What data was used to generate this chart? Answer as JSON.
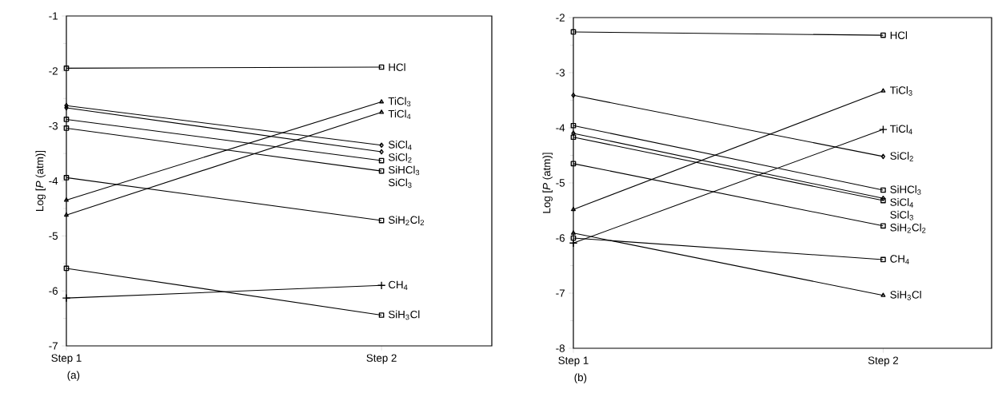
{
  "chart_data": [
    {
      "type": "line",
      "ylabel": "Log  [*P* (atm)]",
      "categories": [
        "Step 1",
        "Step 2"
      ],
      "ylim": [
        -7,
        -1
      ],
      "yticks": [
        -7,
        -6,
        -5,
        -4,
        -3,
        -2,
        -1
      ],
      "grid": false,
      "legend": false,
      "annotations": [
        "(a)"
      ],
      "series": [
        {
          "name": "HCl",
          "color": "#000000",
          "marker": "square",
          "values": [
            -1.95,
            -1.93
          ]
        },
        {
          "name": "TiCl$_{3}$",
          "color": "#000000",
          "marker": "triangle",
          "values": [
            -4.35,
            -2.56
          ]
        },
        {
          "name": "TiCl$_{4}$",
          "color": "#000000",
          "marker": "triangle",
          "values": [
            -4.62,
            -2.75
          ]
        },
        {
          "name": "SiCl$_{4}$",
          "color": "#000000",
          "marker": "diamond",
          "values": [
            -2.63,
            -3.35
          ]
        },
        {
          "name": "SiCl$_{2}$",
          "color": "#000000",
          "marker": "diamond",
          "values": [
            -2.67,
            -3.47
          ]
        },
        {
          "name": "SiHCl$_{3}$",
          "color": "#000000",
          "marker": "square",
          "values": [
            -2.88,
            -3.63
          ]
        },
        {
          "name": "SiCl$_{3}$",
          "color": "#000000",
          "marker": "square",
          "values": [
            -3.04,
            -3.82
          ]
        },
        {
          "name": "SiH$_{2}$Cl$_{2}$",
          "color": "#000000",
          "marker": "square",
          "values": [
            -3.94,
            -4.72
          ]
        },
        {
          "name": "CH$_{4}$",
          "color": "#000000",
          "marker": "cross",
          "values": [
            -6.13,
            -5.9
          ]
        },
        {
          "name": "SiH$_{3}$Cl",
          "color": "#000000",
          "marker": "square",
          "values": [
            -5.59,
            -6.44
          ]
        }
      ]
    },
    {
      "type": "line",
      "ylabel": "Log  [*P* (atm)]",
      "categories": [
        "Step 1",
        "Step 2"
      ],
      "ylim": [
        -8,
        -2
      ],
      "yticks": [
        -8,
        -7,
        -6,
        -5,
        -4,
        -3,
        -2
      ],
      "grid": false,
      "legend": false,
      "annotations": [
        "(b)"
      ],
      "series": [
        {
          "name": "HCl",
          "color": "#000000",
          "marker": "square",
          "values": [
            -2.26,
            -2.32
          ]
        },
        {
          "name": "TiCl$_{3}$",
          "color": "#000000",
          "marker": "triangle",
          "values": [
            -5.48,
            -3.33
          ]
        },
        {
          "name": "TiCl$_{4}$",
          "color": "#000000",
          "marker": "cross",
          "values": [
            -6.09,
            -4.03
          ]
        },
        {
          "name": "SiCl$_{2}$",
          "color": "#000000",
          "marker": "diamond",
          "values": [
            -3.41,
            -4.52
          ]
        },
        {
          "name": "SiHCl$_{3}$",
          "color": "#000000",
          "marker": "square",
          "values": [
            -3.96,
            -5.13
          ]
        },
        {
          "name": "SiCl$_{4}$",
          "color": "#000000",
          "marker": "diamond",
          "values": [
            -4.1,
            -5.28
          ]
        },
        {
          "name": "SiCl$_{3}$",
          "color": "#000000",
          "marker": "square",
          "values": [
            -4.17,
            -5.32
          ]
        },
        {
          "name": "SiH$_{2}$Cl$_{2}$",
          "color": "#000000",
          "marker": "square",
          "values": [
            -4.65,
            -5.78
          ]
        },
        {
          "name": "CH$_{4}$",
          "color": "#000000",
          "marker": "square",
          "values": [
            -6.0,
            -6.39
          ]
        },
        {
          "name": "SiH$_{3}$Cl",
          "color": "#000000",
          "marker": "triangle",
          "values": [
            -5.91,
            -7.04
          ]
        }
      ]
    }
  ]
}
